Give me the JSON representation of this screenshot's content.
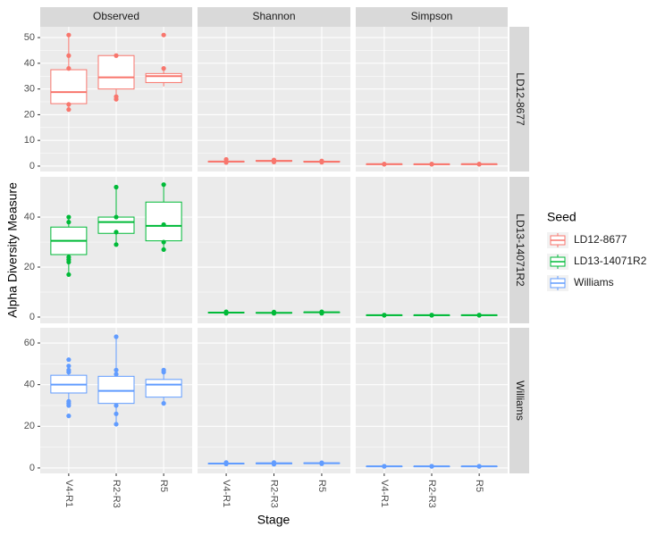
{
  "chart_data": {
    "type": "boxplot",
    "x_label": "Stage",
    "y_label": "Alpha Diversity Measure",
    "legend_title": "Seed",
    "columns": [
      "Observed",
      "Shannon",
      "Simpson"
    ],
    "categories": [
      "V4-R1",
      "R2-R3",
      "R5"
    ],
    "grid": true,
    "series": [
      {
        "name": "LD12-8677",
        "color": "#F8766D",
        "ylim": [
          -2.1,
          54.2
        ],
        "yticks": [
          0,
          10,
          20,
          30,
          40,
          50
        ],
        "panels": [
          [
            {
              "min": 22,
              "q1": 24.3,
              "median": 28.8,
              "q3": 37.5,
              "max": 51,
              "points": [
                22,
                24,
                38,
                43,
                51
              ]
            },
            {
              "min": 26,
              "q1": 30,
              "median": 34.5,
              "q3": 43,
              "max": 43,
              "points": [
                26,
                27,
                43
              ]
            },
            {
              "min": 31,
              "q1": 32.5,
              "median": 35,
              "q3": 36,
              "max": 38,
              "points": [
                38,
                51
              ]
            }
          ],
          [
            {
              "min": 1.4,
              "q1": 1.6,
              "median": 1.75,
              "q3": 1.9,
              "max": 2.1,
              "points": [
                1.4,
                2.6
              ]
            },
            {
              "min": 1.6,
              "q1": 1.9,
              "median": 2.0,
              "q3": 2.2,
              "max": 2.4,
              "points": [
                1.6,
                2.4
              ]
            },
            {
              "min": 1.5,
              "q1": 1.6,
              "median": 1.7,
              "q3": 1.9,
              "max": 2.0,
              "points": [
                1.5,
                2.0
              ]
            }
          ],
          [
            {
              "min": 0.7,
              "q1": 0.72,
              "median": 0.75,
              "q3": 0.78,
              "max": 0.8,
              "points": [
                0.7,
                0.8
              ]
            },
            {
              "min": 0.7,
              "q1": 0.72,
              "median": 0.74,
              "q3": 0.77,
              "max": 0.8,
              "points": [
                0.7,
                0.8
              ]
            },
            {
              "min": 0.7,
              "q1": 0.72,
              "median": 0.75,
              "q3": 0.78,
              "max": 0.8,
              "points": [
                0.7,
                0.8
              ]
            }
          ]
        ]
      },
      {
        "name": "LD13-14071R2",
        "color": "#00BA38",
        "ylim": [
          -2.5,
          56.1
        ],
        "yticks": [
          0,
          20,
          40
        ],
        "panels": [
          [
            {
              "min": 17,
              "q1": 25,
              "median": 30.5,
              "q3": 36,
              "max": 40,
              "points": [
                17,
                22,
                23,
                24,
                38,
                40
              ]
            },
            {
              "min": 29,
              "q1": 33.5,
              "median": 38,
              "q3": 40,
              "max": 52,
              "points": [
                29,
                34,
                40,
                52
              ]
            },
            {
              "min": 27,
              "q1": 30.5,
              "median": 36.5,
              "q3": 46,
              "max": 53,
              "points": [
                27,
                30,
                37,
                53
              ]
            }
          ],
          [
            {
              "min": 1.5,
              "q1": 1.7,
              "median": 1.8,
              "q3": 1.9,
              "max": 2.1,
              "points": [
                1.5,
                2.1
              ]
            },
            {
              "min": 1.5,
              "q1": 1.6,
              "median": 1.7,
              "q3": 1.8,
              "max": 2.0,
              "points": [
                1.5,
                2.0
              ]
            },
            {
              "min": 1.5,
              "q1": 1.8,
              "median": 1.9,
              "q3": 2.0,
              "max": 2.1,
              "points": [
                1.5,
                2.1
              ]
            }
          ],
          [
            {
              "min": 0.7,
              "q1": 0.75,
              "median": 0.78,
              "q3": 0.8,
              "max": 0.82,
              "points": [
                0.7,
                0.82
              ]
            },
            {
              "min": 0.7,
              "q1": 0.74,
              "median": 0.77,
              "q3": 0.79,
              "max": 0.81,
              "points": [
                0.7,
                0.81
              ]
            },
            {
              "min": 0.7,
              "q1": 0.75,
              "median": 0.78,
              "q3": 0.8,
              "max": 0.82,
              "points": [
                0.7,
                0.82
              ]
            }
          ]
        ]
      },
      {
        "name": "Williams",
        "color": "#619CFF",
        "ylim": [
          -2.6,
          67.3
        ],
        "yticks": [
          0,
          20,
          40,
          60
        ],
        "panels": [
          [
            {
              "min": 30,
              "q1": 36,
              "median": 40,
              "q3": 44.5,
              "max": 47,
              "points": [
                25,
                30,
                31,
                32,
                46,
                47,
                49,
                52
              ]
            },
            {
              "min": 21,
              "q1": 31,
              "median": 37,
              "q3": 44,
              "max": 63,
              "points": [
                21,
                26,
                30,
                45,
                47,
                63
              ]
            },
            {
              "min": 31,
              "q1": 34,
              "median": 40,
              "q3": 42.5,
              "max": 47,
              "points": [
                31,
                46,
                47
              ]
            }
          ],
          [
            {
              "min": 1.9,
              "q1": 2.0,
              "median": 2.1,
              "q3": 2.2,
              "max": 2.4,
              "points": [
                1.9,
                2.6
              ]
            },
            {
              "min": 1.8,
              "q1": 2.0,
              "median": 2.2,
              "q3": 2.4,
              "max": 2.6,
              "points": [
                1.8,
                2.6
              ]
            },
            {
              "min": 2.0,
              "q1": 2.2,
              "median": 2.3,
              "q3": 2.4,
              "max": 2.5,
              "points": [
                2.0,
                2.5
              ]
            }
          ],
          [
            {
              "min": 0.75,
              "q1": 0.78,
              "median": 0.8,
              "q3": 0.82,
              "max": 0.84,
              "points": [
                0.75,
                0.84
              ]
            },
            {
              "min": 0.75,
              "q1": 0.77,
              "median": 0.79,
              "q3": 0.81,
              "max": 0.83,
              "points": [
                0.75,
                0.83
              ]
            },
            {
              "min": 0.75,
              "q1": 0.78,
              "median": 0.8,
              "q3": 0.82,
              "max": 0.84,
              "points": [
                0.75,
                0.84
              ]
            }
          ]
        ]
      }
    ]
  }
}
